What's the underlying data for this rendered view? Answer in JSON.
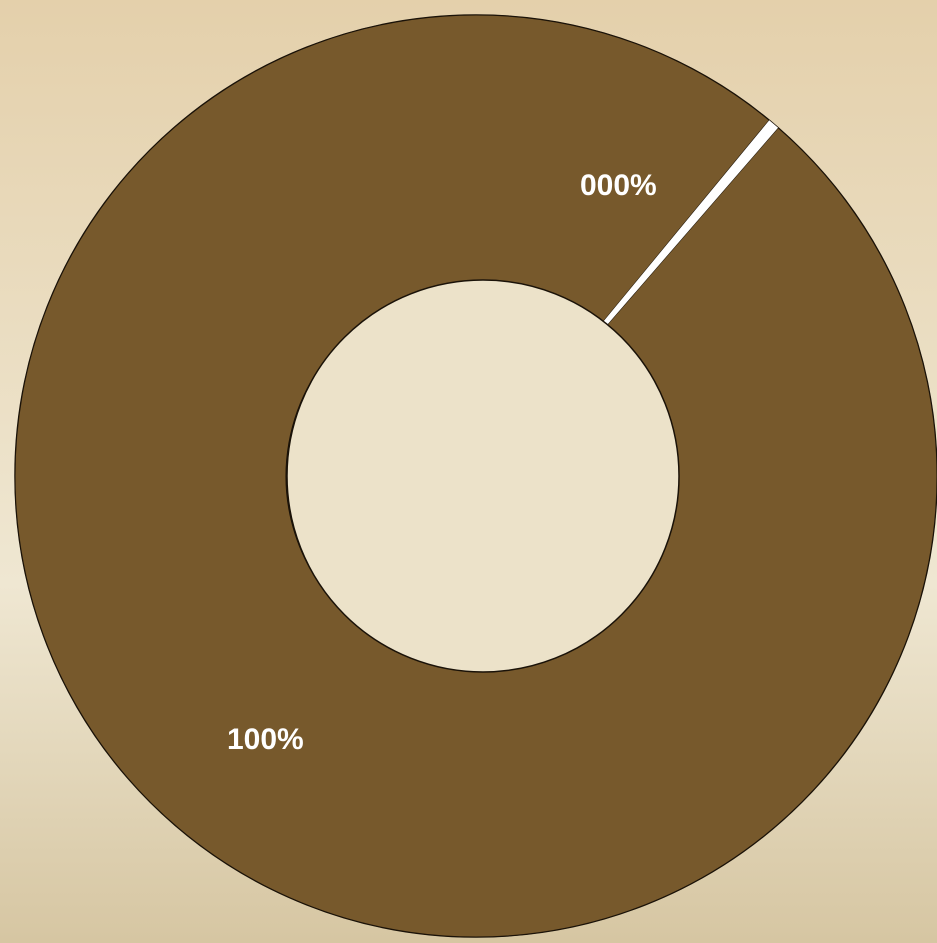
{
  "chart_data": {
    "type": "pie",
    "variant": "donut",
    "title": "",
    "slices": [
      {
        "label": "100%",
        "value": 99.6,
        "color": "#77592c"
      },
      {
        "label": "000%",
        "value": 0.4,
        "color": "#ffffff"
      }
    ],
    "legend": "none"
  }
}
